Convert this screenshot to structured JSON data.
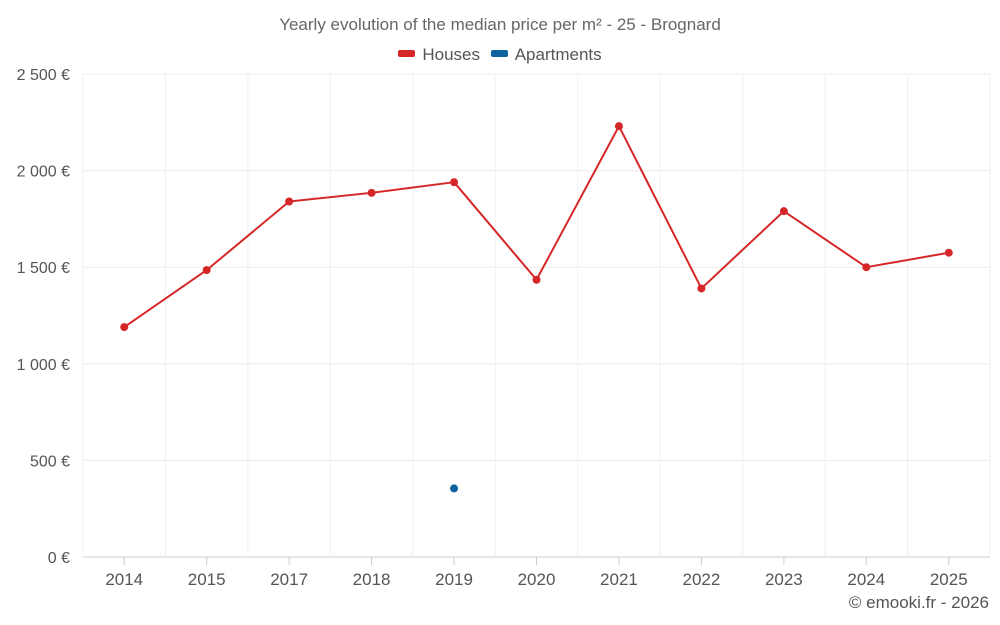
{
  "chart_data": {
    "type": "line",
    "title": "Yearly evolution of the median price per m² - 25 - Brognard",
    "categories": [
      "2014",
      "2015",
      "2017",
      "2018",
      "2019",
      "2020",
      "2021",
      "2022",
      "2023",
      "2024",
      "2025"
    ],
    "series": [
      {
        "name": "Houses",
        "color": "#d62728",
        "values": [
          1190,
          1485,
          1840,
          1885,
          1940,
          1435,
          2230,
          1390,
          1790,
          1500,
          1575
        ]
      },
      {
        "name": "Apartments",
        "color": "#0e64a0",
        "values": [
          null,
          null,
          null,
          null,
          355,
          null,
          null,
          null,
          null,
          null,
          null
        ]
      }
    ],
    "y_ticks": [
      "0 €",
      "500 €",
      "1 000 €",
      "1 500 €",
      "2 000 €",
      "2 500 €"
    ],
    "ylim": [
      0,
      2500
    ],
    "grid": true,
    "legend_position": "top-center"
  },
  "footer": {
    "copyright": "© emooki.fr - 2026"
  }
}
